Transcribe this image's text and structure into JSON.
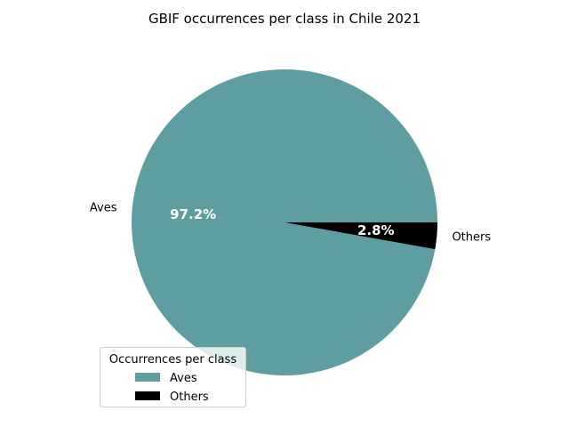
{
  "chart_data": {
    "type": "pie",
    "title": "GBIF occurrences per class in Chile 2021",
    "slices": [
      {
        "label": "Aves",
        "percent": 97.2,
        "pct_label": "97.2%",
        "color": "#5f9ea0"
      },
      {
        "label": "Others",
        "percent": 2.8,
        "pct_label": "2.8%",
        "color": "#000000"
      }
    ],
    "legend": {
      "title": "Occurrences per class",
      "placement": "lower-left",
      "entries": [
        "Aves",
        "Others"
      ]
    }
  }
}
